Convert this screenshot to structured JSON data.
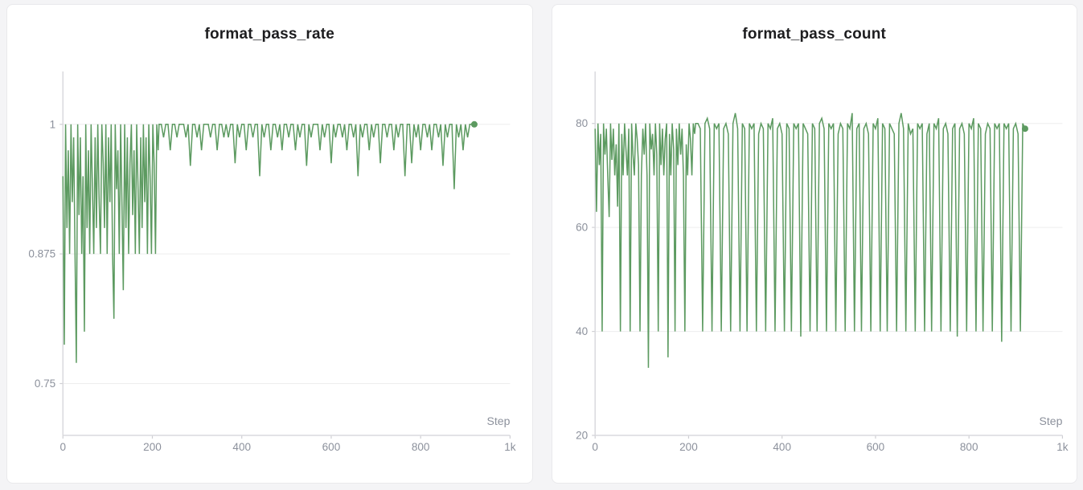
{
  "page": {
    "background": "#f4f4f6",
    "card_background": "#ffffff",
    "accent_green": "#5c9a60"
  },
  "chart_data": [
    {
      "type": "line",
      "title": "format_pass_rate",
      "xlabel": "Step",
      "ylabel": "",
      "legend": "none",
      "grid": "horizontal-only",
      "line_color": "#5c9a60",
      "xlim": [
        0,
        1000
      ],
      "ylim": [
        0.7,
        1.051
      ],
      "xticks": [
        {
          "v": 0,
          "label": "0"
        },
        {
          "v": 200,
          "label": "200"
        },
        {
          "v": 400,
          "label": "400"
        },
        {
          "v": 600,
          "label": "600"
        },
        {
          "v": 800,
          "label": "800"
        },
        {
          "v": 1000,
          "label": "1k"
        }
      ],
      "yticks": [
        {
          "v": 0.75,
          "label": "0.75"
        },
        {
          "v": 0.875,
          "label": "0.875"
        },
        {
          "v": 1,
          "label": "1"
        }
      ],
      "final_point": {
        "step": 920,
        "value": 1
      },
      "steps": [
        0,
        3,
        6,
        9,
        12,
        15,
        18,
        21,
        24,
        27,
        30,
        33,
        36,
        39,
        42,
        45,
        48,
        51,
        54,
        57,
        60,
        63,
        66,
        69,
        72,
        75,
        78,
        81,
        84,
        87,
        90,
        93,
        96,
        99,
        102,
        105,
        108,
        111,
        114,
        117,
        120,
        123,
        126,
        129,
        132,
        135,
        138,
        141,
        144,
        147,
        150,
        153,
        156,
        159,
        162,
        165,
        168,
        171,
        174,
        177,
        180,
        183,
        186,
        189,
        192,
        195,
        198,
        201,
        204,
        207,
        210,
        213,
        215,
        220,
        225,
        230,
        235,
        240,
        245,
        250,
        255,
        260,
        265,
        270,
        275,
        280,
        285,
        290,
        295,
        300,
        305,
        310,
        315,
        320,
        325,
        330,
        335,
        340,
        345,
        350,
        355,
        360,
        365,
        370,
        375,
        380,
        385,
        390,
        395,
        400,
        405,
        410,
        415,
        420,
        425,
        430,
        435,
        440,
        445,
        450,
        455,
        460,
        465,
        470,
        475,
        480,
        485,
        490,
        495,
        500,
        505,
        510,
        515,
        520,
        525,
        530,
        535,
        540,
        545,
        550,
        555,
        560,
        565,
        570,
        575,
        580,
        585,
        590,
        595,
        600,
        605,
        610,
        615,
        620,
        625,
        630,
        635,
        640,
        645,
        650,
        655,
        660,
        665,
        670,
        675,
        680,
        685,
        690,
        695,
        700,
        705,
        710,
        715,
        720,
        725,
        730,
        735,
        740,
        745,
        750,
        755,
        760,
        765,
        770,
        775,
        780,
        785,
        790,
        795,
        800,
        805,
        810,
        815,
        820,
        825,
        830,
        835,
        840,
        845,
        850,
        855,
        860,
        865,
        870,
        875,
        880,
        885,
        890,
        895,
        900,
        905,
        910,
        915,
        920
      ],
      "values": [
        0.95,
        0.7875,
        1,
        0.9,
        0.975,
        0.875,
        1,
        0.925,
        0.9875,
        0.875,
        0.77,
        1,
        0.9125,
        0.9875,
        0.875,
        0.95,
        0.8,
        1,
        0.9,
        0.975,
        0.875,
        1,
        0.9375,
        0.875,
        0.9875,
        0.9,
        1,
        0.925,
        0.875,
        1,
        0.9625,
        0.9,
        1,
        0.875,
        0.9875,
        0.925,
        1,
        0.875,
        0.8125,
        1,
        0.9375,
        0.975,
        0.875,
        1,
        0.925,
        0.84,
        1,
        0.9,
        0.9875,
        0.875,
        0.9625,
        1,
        0.9125,
        0.975,
        0.875,
        1,
        0.9375,
        0.875,
        0.9875,
        0.9,
        1,
        0.925,
        0.9875,
        0.875,
        1,
        0.95,
        0.875,
        1,
        0.9625,
        0.875,
        1,
        0.975,
        1,
        1,
        0.9875,
        1,
        1,
        0.975,
        1,
        1,
        0.9875,
        1,
        1,
        1,
        0.9875,
        1,
        0.96,
        1,
        1,
        0.9875,
        1,
        0.975,
        1,
        1,
        1,
        0.9875,
        1,
        1,
        0.975,
        1,
        1,
        0.9875,
        1,
        0.9875,
        1,
        1,
        0.9625,
        1,
        0.9875,
        1,
        1,
        0.975,
        1,
        1,
        0.9875,
        1,
        1,
        0.95,
        1,
        0.9875,
        1,
        1,
        0.975,
        1,
        1,
        0.9875,
        1,
        0.975,
        1,
        1,
        0.9875,
        1,
        1,
        0.975,
        1,
        0.9875,
        1,
        1,
        0.96,
        1,
        0.9875,
        1,
        1,
        1,
        0.975,
        1,
        0.9875,
        1,
        1,
        0.9625,
        1,
        0.9875,
        1,
        1,
        0.9875,
        1,
        0.975,
        1,
        1,
        0.9875,
        1,
        0.95,
        1,
        0.9875,
        1,
        1,
        0.975,
        1,
        0.9875,
        1,
        1,
        0.9625,
        1,
        1,
        0.9875,
        1,
        1,
        0.975,
        1,
        0.9875,
        1,
        1,
        0.95,
        1,
        1,
        0.9625,
        1,
        0.9875,
        1,
        0.975,
        1,
        1,
        0.9875,
        1,
        0.975,
        1,
        1,
        0.9875,
        1,
        0.96,
        1,
        0.9875,
        1,
        1,
        0.9375,
        1,
        0.9875,
        1,
        0.975,
        1,
        0.9875,
        1,
        1,
        1
      ]
    },
    {
      "type": "line",
      "title": "format_pass_count",
      "xlabel": "Step",
      "ylabel": "",
      "legend": "none",
      "grid": "horizontal-only",
      "line_color": "#5c9a60",
      "xlim": [
        0,
        1000
      ],
      "ylim": [
        20,
        90
      ],
      "xticks": [
        {
          "v": 0,
          "label": "0"
        },
        {
          "v": 200,
          "label": "200"
        },
        {
          "v": 400,
          "label": "400"
        },
        {
          "v": 600,
          "label": "600"
        },
        {
          "v": 800,
          "label": "800"
        },
        {
          "v": 1000,
          "label": "1k"
        }
      ],
      "yticks": [
        {
          "v": 20,
          "label": "20"
        },
        {
          "v": 40,
          "label": "40"
        },
        {
          "v": 60,
          "label": "60"
        },
        {
          "v": 80,
          "label": "80"
        }
      ],
      "final_point": {
        "step": 920,
        "value": 79
      },
      "steps": [
        0,
        3,
        6,
        9,
        12,
        15,
        18,
        21,
        24,
        27,
        30,
        33,
        36,
        39,
        42,
        45,
        48,
        51,
        54,
        57,
        60,
        63,
        66,
        69,
        72,
        75,
        78,
        81,
        84,
        87,
        90,
        93,
        96,
        99,
        102,
        105,
        108,
        111,
        114,
        117,
        120,
        123,
        126,
        129,
        132,
        135,
        138,
        141,
        144,
        147,
        150,
        153,
        156,
        159,
        162,
        165,
        168,
        171,
        174,
        177,
        180,
        183,
        186,
        189,
        192,
        195,
        198,
        201,
        204,
        207,
        210,
        213,
        215,
        220,
        225,
        230,
        235,
        240,
        245,
        250,
        255,
        260,
        265,
        270,
        275,
        280,
        285,
        290,
        295,
        300,
        305,
        310,
        315,
        320,
        325,
        330,
        335,
        340,
        345,
        350,
        355,
        360,
        365,
        370,
        375,
        380,
        385,
        390,
        395,
        400,
        405,
        410,
        415,
        420,
        425,
        430,
        435,
        440,
        445,
        450,
        455,
        460,
        465,
        470,
        475,
        480,
        485,
        490,
        495,
        500,
        505,
        510,
        515,
        520,
        525,
        530,
        535,
        540,
        545,
        550,
        555,
        560,
        565,
        570,
        575,
        580,
        585,
        590,
        595,
        600,
        605,
        610,
        615,
        620,
        625,
        630,
        635,
        640,
        645,
        650,
        655,
        660,
        665,
        670,
        675,
        680,
        685,
        690,
        695,
        700,
        705,
        710,
        715,
        720,
        725,
        730,
        735,
        740,
        745,
        750,
        755,
        760,
        765,
        770,
        775,
        780,
        785,
        790,
        795,
        800,
        805,
        810,
        815,
        820,
        825,
        830,
        835,
        840,
        845,
        850,
        855,
        860,
        865,
        870,
        875,
        880,
        885,
        890,
        895,
        900,
        905,
        910,
        915,
        920
      ],
      "values": [
        79,
        63,
        80,
        72,
        78,
        40,
        80,
        74,
        79,
        70,
        62,
        80,
        73,
        79,
        70,
        76,
        64,
        80,
        40,
        78,
        70,
        80,
        75,
        70,
        79,
        40,
        80,
        74,
        70,
        80,
        77,
        72,
        40,
        70,
        79,
        74,
        80,
        70,
        33,
        80,
        75,
        78,
        70,
        80,
        74,
        40,
        80,
        72,
        79,
        70,
        77,
        80,
        35,
        78,
        70,
        80,
        75,
        40,
        79,
        72,
        80,
        74,
        79,
        70,
        40,
        76,
        70,
        80,
        77,
        70,
        80,
        78,
        80,
        80,
        79,
        40,
        80,
        81,
        79,
        40,
        80,
        79,
        80,
        40,
        79,
        80,
        78,
        40,
        80,
        82,
        79,
        40,
        80,
        79,
        40,
        80,
        79,
        80,
        40,
        78,
        80,
        79,
        40,
        80,
        79,
        81,
        40,
        79,
        80,
        78,
        40,
        80,
        79,
        40,
        80,
        79,
        80,
        39,
        80,
        79,
        78,
        40,
        80,
        79,
        40,
        80,
        81,
        79,
        40,
        80,
        79,
        80,
        40,
        78,
        80,
        79,
        40,
        80,
        79,
        82,
        40,
        79,
        80,
        40,
        79,
        80,
        78,
        40,
        80,
        79,
        81,
        40,
        80,
        79,
        40,
        80,
        79,
        78,
        40,
        80,
        82,
        79,
        40,
        80,
        78,
        79,
        40,
        80,
        79,
        80,
        40,
        78,
        80,
        40,
        80,
        79,
        81,
        40,
        79,
        80,
        78,
        40,
        79,
        80,
        39,
        79,
        80,
        78,
        40,
        80,
        79,
        81,
        40,
        80,
        79,
        40,
        78,
        80,
        79,
        40,
        80,
        79,
        80,
        38,
        80,
        79,
        80,
        40,
        79,
        80,
        78,
        40,
        80,
        79
      ]
    }
  ]
}
